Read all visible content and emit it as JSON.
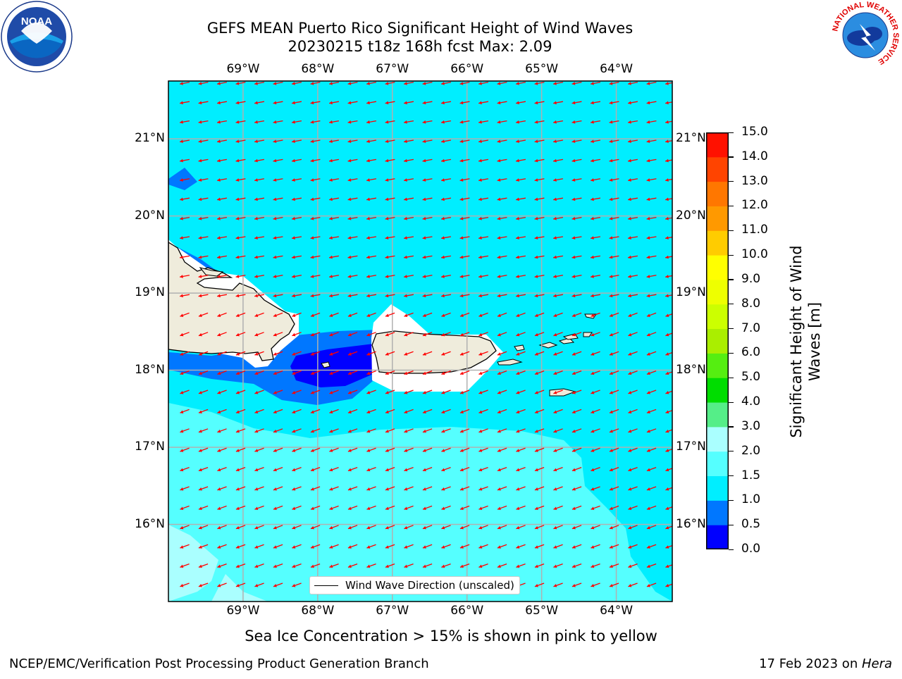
{
  "title": {
    "line1": "GEFS MEAN Puerto Rico Significant Height of Wind Waves",
    "line2": "20230215 t18z 168h fcst   Max: 2.09"
  },
  "map": {
    "lon_range": [
      -70.0,
      -63.25
    ],
    "lat_range": [
      15.0,
      21.75
    ],
    "lon_ticks": [
      -69,
      -68,
      -67,
      -66,
      -65,
      -64
    ],
    "lon_labels": [
      "69°W",
      "68°W",
      "67°W",
      "66°W",
      "65°W",
      "64°W"
    ],
    "lat_ticks": [
      16,
      17,
      18,
      19,
      20,
      21
    ],
    "lat_labels": [
      "16°N",
      "17°N",
      "18°N",
      "19°N",
      "20°N",
      "21°N"
    ],
    "gridlines": true,
    "arrow_direction": "toward-west-southwest",
    "land_color": "#efecdc",
    "arrow_color": "#ff0000"
  },
  "legend": {
    "label": "Wind Wave Direction (unscaled)",
    "placement": "lower-center"
  },
  "colorbar": {
    "label_line1": "Significant Height of Wind",
    "label_line2": "Waves [m]",
    "ticks": [
      "0.0",
      "0.5",
      "1.0",
      "1.5",
      "2.0",
      "3.0",
      "4.0",
      "5.0",
      "6.0",
      "7.0",
      "8.0",
      "9.0",
      "10.0",
      "11.0",
      "12.0",
      "13.0",
      "14.0",
      "15.0"
    ],
    "colors": [
      "#0000ff",
      "#0077ff",
      "#00eeff",
      "#55ffff",
      "#aaffff",
      "#55ee88",
      "#00dd00",
      "#55ee11",
      "#aaee00",
      "#ccff00",
      "#eeff00",
      "#ffff00",
      "#ffcc00",
      "#ff9900",
      "#ff7700",
      "#ff4400",
      "#ff1100"
    ]
  },
  "caption": "Sea Ice Concentration > 15% is shown in pink to yellow",
  "footer": {
    "left": "NCEP/EMC/Verification Post Processing Product Generation Branch",
    "right_date": "17 Feb 2023 on ",
    "right_host": "Hera"
  },
  "logos": {
    "noaa": "NOAA",
    "nws_ring": "NATIONAL WEATHER SERVICE"
  }
}
